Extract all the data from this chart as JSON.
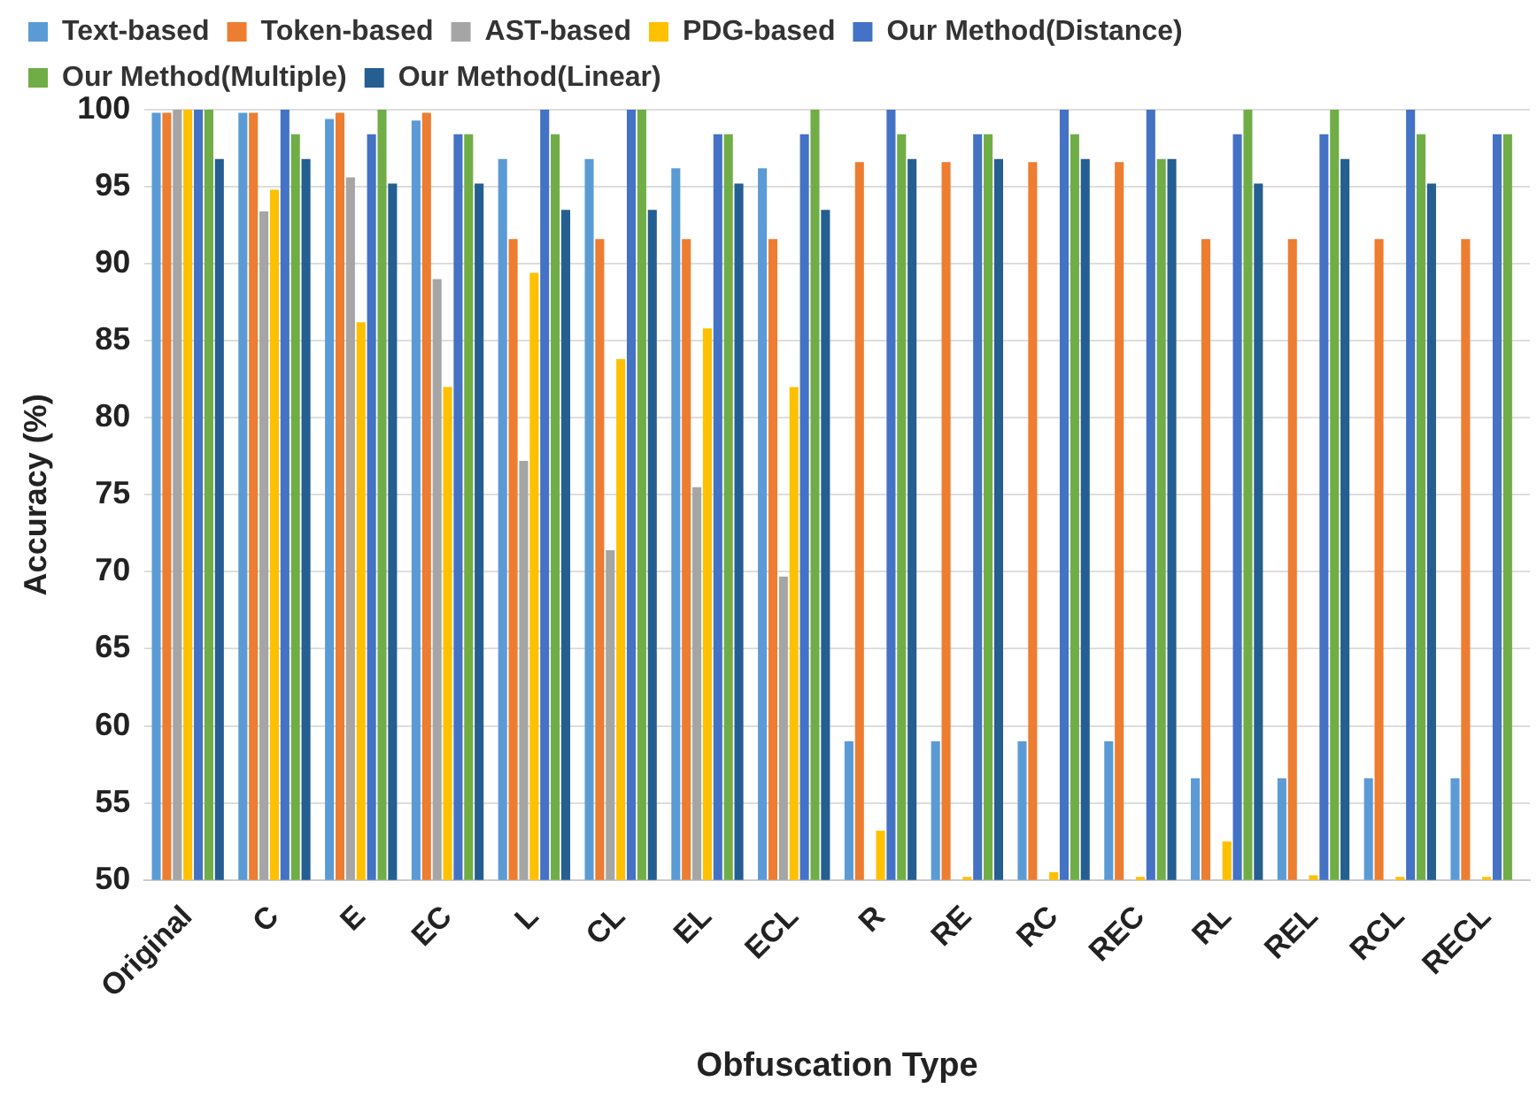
{
  "chart_data": {
    "type": "bar",
    "xlabel": "Obfuscation Type",
    "ylabel": "Accuracy (%)",
    "categories": [
      "Original",
      "C",
      "E",
      "EC",
      "L",
      "CL",
      "EL",
      "ECL",
      "R",
      "RE",
      "RC",
      "REC",
      "RL",
      "REL",
      "RCL",
      "RECL"
    ],
    "series": [
      {
        "name": "Text-based",
        "color": "#5b9bd5",
        "values": [
          99.8,
          99.8,
          99.4,
          99.3,
          96.8,
          96.8,
          96.2,
          96.2,
          59,
          59,
          59,
          59,
          56.6,
          56.6,
          56.6,
          56.6
        ]
      },
      {
        "name": "Token-based",
        "color": "#ed7d31",
        "values": [
          99.8,
          99.8,
          99.8,
          99.8,
          91.6,
          91.6,
          91.6,
          91.6,
          96.6,
          96.6,
          96.6,
          96.6,
          91.6,
          91.6,
          91.6,
          91.6
        ]
      },
      {
        "name": "AST-based",
        "color": "#a5a5a5",
        "values": [
          100,
          93.4,
          95.6,
          89,
          77.2,
          71.4,
          75.5,
          69.7,
          50,
          50,
          50,
          50,
          50,
          50,
          50,
          50
        ]
      },
      {
        "name": "PDG-based",
        "color": "#ffc000",
        "values": [
          100,
          94.8,
          86.2,
          82,
          89.4,
          83.8,
          85.8,
          82,
          53.2,
          50.2,
          50.5,
          50.2,
          52.5,
          50.3,
          50.2,
          50.2
        ]
      },
      {
        "name": "Our Method(Distance)",
        "color": "#4472c4",
        "values": [
          100,
          100,
          98.4,
          98.4,
          100,
          100,
          98.4,
          98.4,
          100,
          98.4,
          100,
          100,
          98.4,
          98.4,
          100,
          98.4
        ]
      },
      {
        "name": "Our Method(Multiple)",
        "color": "#70ad47",
        "values": [
          100,
          98.4,
          100,
          98.4,
          98.4,
          100,
          98.4,
          100,
          98.4,
          98.4,
          98.4,
          96.8,
          100,
          100,
          98.4,
          98.4
        ]
      },
      {
        "name": "Our Method(Linear)",
        "color": "#255e91",
        "values": [
          96.8,
          96.8,
          95.2,
          95.2,
          93.5,
          93.5,
          95.2,
          93.5,
          96.8,
          96.8,
          96.8,
          96.8,
          95.2,
          96.8,
          95.2,
          null
        ]
      }
    ],
    "ylim": [
      50,
      100
    ],
    "yticks": [
      50,
      55,
      60,
      65,
      70,
      75,
      80,
      85,
      90,
      95,
      100
    ],
    "grid": "y",
    "legend": "top"
  }
}
